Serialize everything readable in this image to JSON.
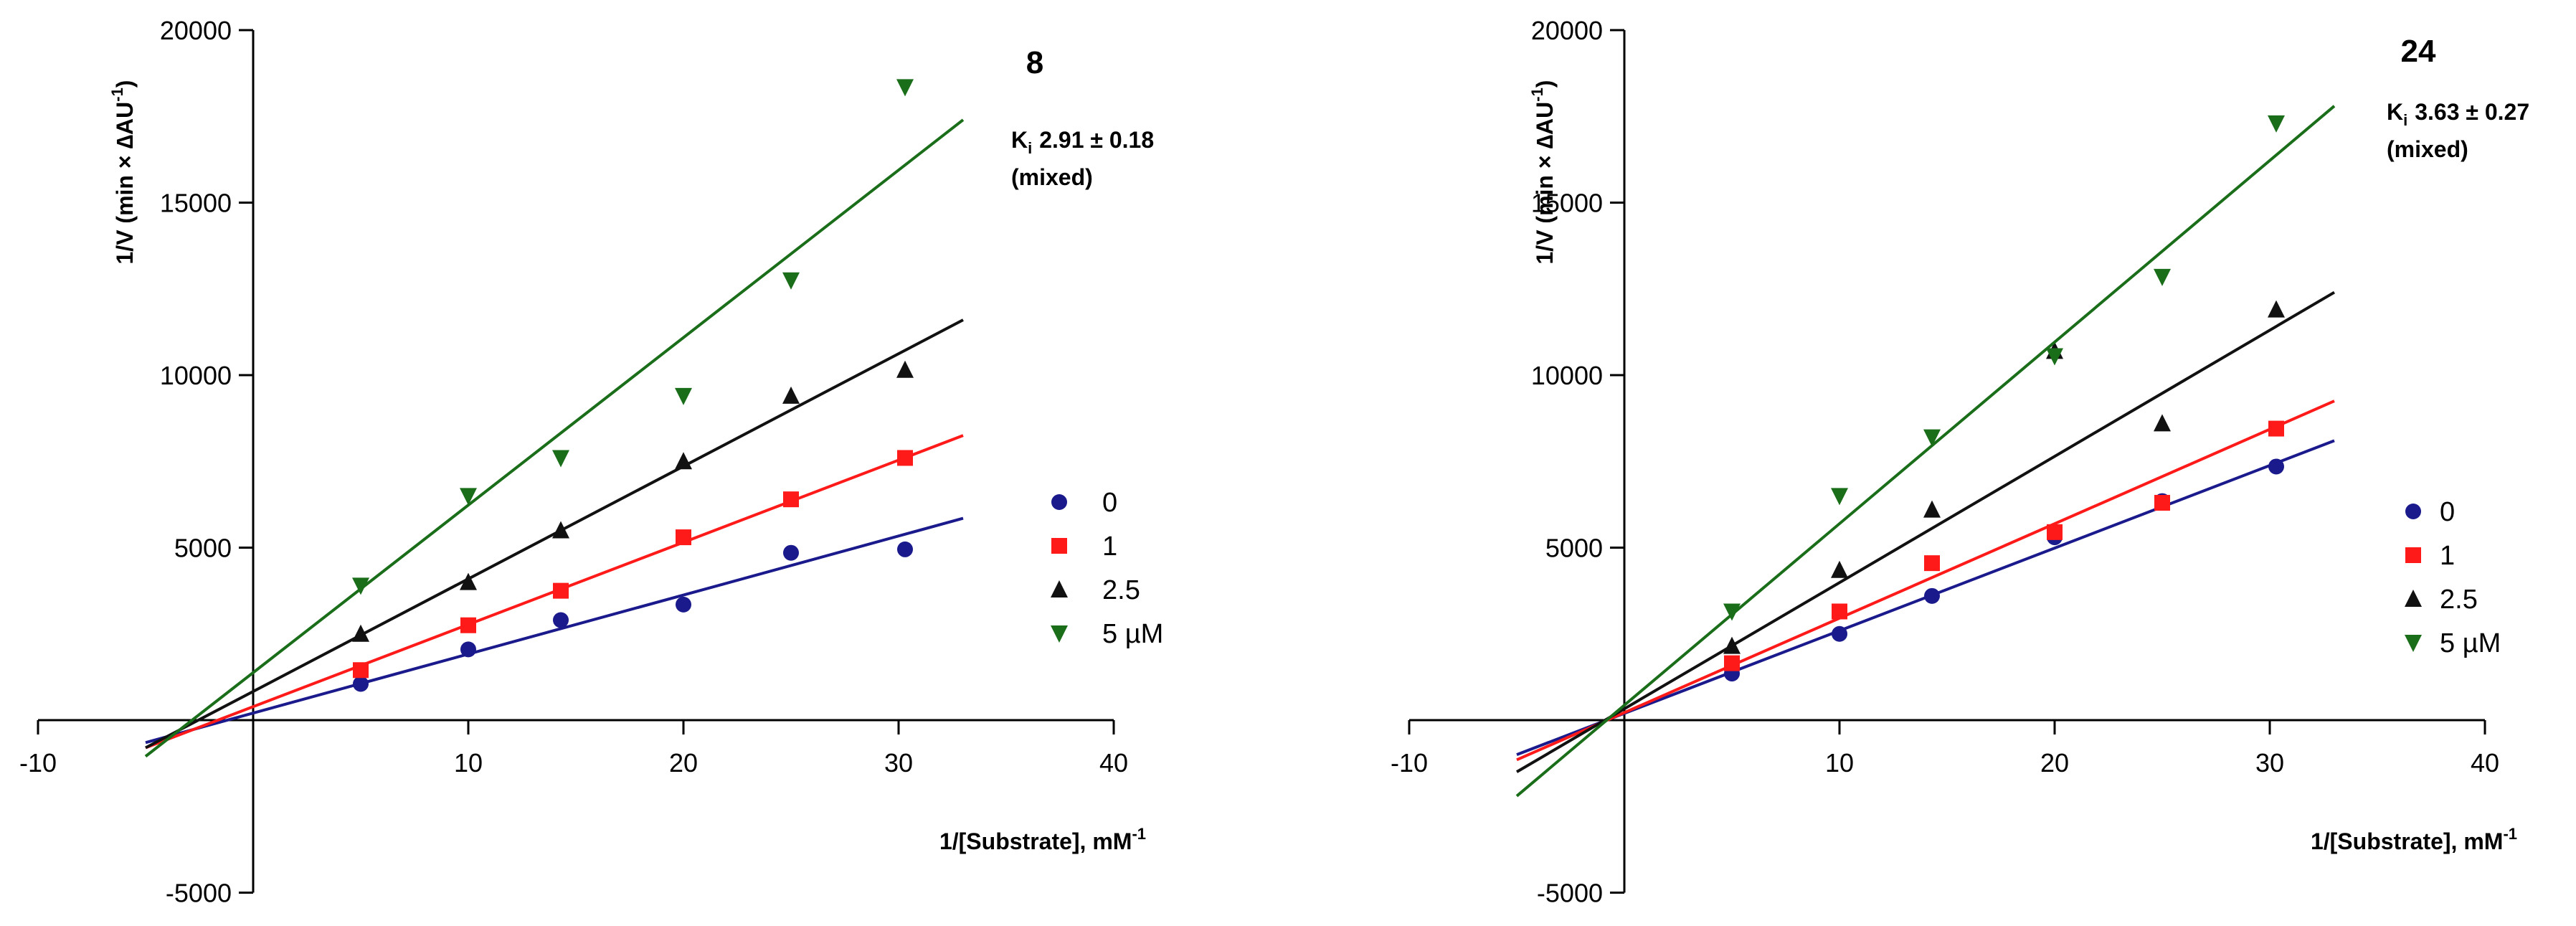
{
  "chart_data": [
    {
      "type": "scatter",
      "compound_label": "8",
      "ki_symbol": "K",
      "ki_subscript": "i",
      "ki_value": "2.91 ± 0.18",
      "ki_mode": "(mixed)",
      "xlabel_main": "1/[Substrate], mM",
      "xlabel_sup": "-1",
      "ylabel_main": "1/V (min × ∆AU",
      "ylabel_sup": "-1",
      "ylabel_close": ")",
      "xlim": [
        -10,
        40
      ],
      "ylim": [
        -5000,
        20000
      ],
      "x_ticks": [
        -10,
        10,
        20,
        30,
        40
      ],
      "y_ticks": [
        -5000,
        5000,
        10000,
        15000,
        20000
      ],
      "series": [
        {
          "name": "0",
          "color": "#1a1a8c",
          "marker": "circle",
          "x": [
            5,
            10,
            14.3,
            20,
            25,
            30.3
          ],
          "y": [
            1050,
            2050,
            2900,
            3350,
            4850,
            4950
          ],
          "fit": {
            "x": [
              -5,
              33
            ],
            "y": [
              -650,
              5850
            ]
          }
        },
        {
          "name": "1",
          "color": "#ff1a1a",
          "marker": "square",
          "x": [
            5,
            10,
            14.3,
            20,
            25,
            30.3
          ],
          "y": [
            1450,
            2750,
            3750,
            5300,
            6400,
            7600
          ],
          "fit": {
            "x": [
              -5,
              33
            ],
            "y": [
              -800,
              8250
            ]
          }
        },
        {
          "name": "2.5",
          "color": "#111111",
          "marker": "triangle-up",
          "x": [
            5,
            10,
            14.3,
            20,
            25,
            30.3
          ],
          "y": [
            2500,
            4000,
            5500,
            7500,
            9400,
            10150
          ],
          "fit": {
            "x": [
              -5,
              33
            ],
            "y": [
              -800,
              11600
            ]
          }
        },
        {
          "name": "5 µM",
          "color": "#1a6e1a",
          "marker": "triangle-down",
          "x": [
            5,
            10,
            14.3,
            20,
            25,
            30.3
          ],
          "y": [
            3900,
            6500,
            7600,
            9400,
            12750,
            18350
          ],
          "fit": {
            "x": [
              -5,
              33
            ],
            "y": [
              -1050,
              17400
            ]
          }
        }
      ]
    },
    {
      "type": "scatter",
      "compound_label": "24",
      "ki_symbol": "K",
      "ki_subscript": "i",
      "ki_value": "3.63 ± 0.27",
      "ki_mode": "(mixed)",
      "xlabel_main": "1/[Substrate], mM",
      "xlabel_sup": "-1",
      "ylabel_main": "1/V (min × ∆AU",
      "ylabel_sup": "-1",
      "ylabel_close": ")",
      "xlim": [
        -10,
        40
      ],
      "ylim": [
        -5000,
        20000
      ],
      "x_ticks": [
        -10,
        10,
        20,
        30,
        40
      ],
      "y_ticks": [
        -5000,
        5000,
        10000,
        15000,
        20000
      ],
      "series": [
        {
          "name": "0",
          "color": "#1a1a8c",
          "marker": "circle",
          "x": [
            5,
            10,
            14.3,
            20,
            25,
            30.3
          ],
          "y": [
            1350,
            2500,
            3600,
            5300,
            6350,
            7350
          ],
          "fit": {
            "x": [
              -5,
              33
            ],
            "y": [
              -1000,
              8100
            ]
          }
        },
        {
          "name": "1",
          "color": "#ff1a1a",
          "marker": "square",
          "x": [
            5,
            10,
            14.3,
            20,
            25,
            30.3
          ],
          "y": [
            1650,
            3150,
            4550,
            5450,
            6300,
            8450
          ],
          "fit": {
            "x": [
              -5,
              33
            ],
            "y": [
              -1150,
              9250
            ]
          }
        },
        {
          "name": "2.5",
          "color": "#111111",
          "marker": "triangle-up",
          "x": [
            5,
            10,
            14.3,
            20,
            25,
            30.3
          ],
          "y": [
            2150,
            4350,
            6100,
            10700,
            8600,
            11900
          ],
          "fit": {
            "x": [
              -5,
              33
            ],
            "y": [
              -1500,
              12400
            ]
          }
        },
        {
          "name": "5 µM",
          "color": "#1a6e1a",
          "marker": "triangle-down",
          "x": [
            5,
            10,
            14.3,
            20,
            25,
            30.3
          ],
          "y": [
            3150,
            6500,
            8200,
            10550,
            12850,
            17300
          ],
          "fit": {
            "x": [
              -5,
              33
            ],
            "y": [
              -2200,
              17800
            ]
          }
        }
      ]
    }
  ]
}
